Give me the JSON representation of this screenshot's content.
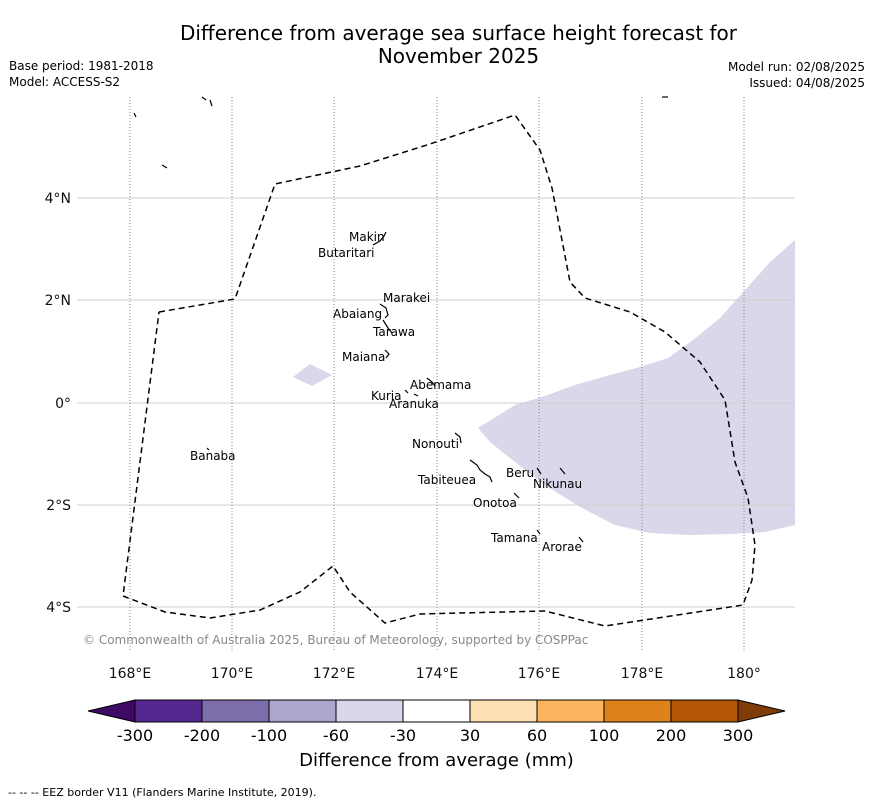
{
  "header": {
    "title_line1": "Difference from average sea surface height forecast for",
    "title_line2": "November 2025",
    "base_period": "Base period: 1981-2018",
    "model": "Model: ACCESS-S2",
    "model_run": "Model run: 02/08/2025",
    "issued": "Issued: 04/08/2025"
  },
  "map": {
    "lat_labels": [
      "4°N",
      "2°N",
      "0°",
      "2°S",
      "4°S"
    ],
    "lon_labels": [
      "168°E",
      "170°E",
      "172°E",
      "174°E",
      "176°E",
      "178°E",
      "180°"
    ],
    "copyright": "© Commonwealth of Australia 2025, Bureau of Meteorology, supported by COSPPac",
    "islands": [
      "Makin",
      "Butaritari",
      "Marakei",
      "Abaiang",
      "Tarawa",
      "Maiana",
      "Abemama",
      "Kuria",
      "Aranuka",
      "Banaba",
      "Nonouti",
      "Tabiteuea",
      "Beru",
      "Nikunau",
      "Onotoa",
      "Tamana",
      "Arorae"
    ],
    "anomaly_fill_color": "#d8d8ea",
    "eez_line_color": "#000000"
  },
  "colorbar": {
    "ticks": [
      "-300",
      "-200",
      "-100",
      "-60",
      "-30",
      "30",
      "60",
      "100",
      "200",
      "300"
    ],
    "colors": [
      "#3f0a66",
      "#54278f",
      "#7e6fac",
      "#aca5cd",
      "#d8d8ea",
      "#ffffff",
      "#fde0b2",
      "#fdb45f",
      "#e0821a",
      "#b25606",
      "#7f3b08"
    ],
    "label": "Difference from average (mm)"
  },
  "footer": {
    "legend_text": "--  --  -- EEZ border V11 (Flanders Marine Institute, 2019)."
  }
}
